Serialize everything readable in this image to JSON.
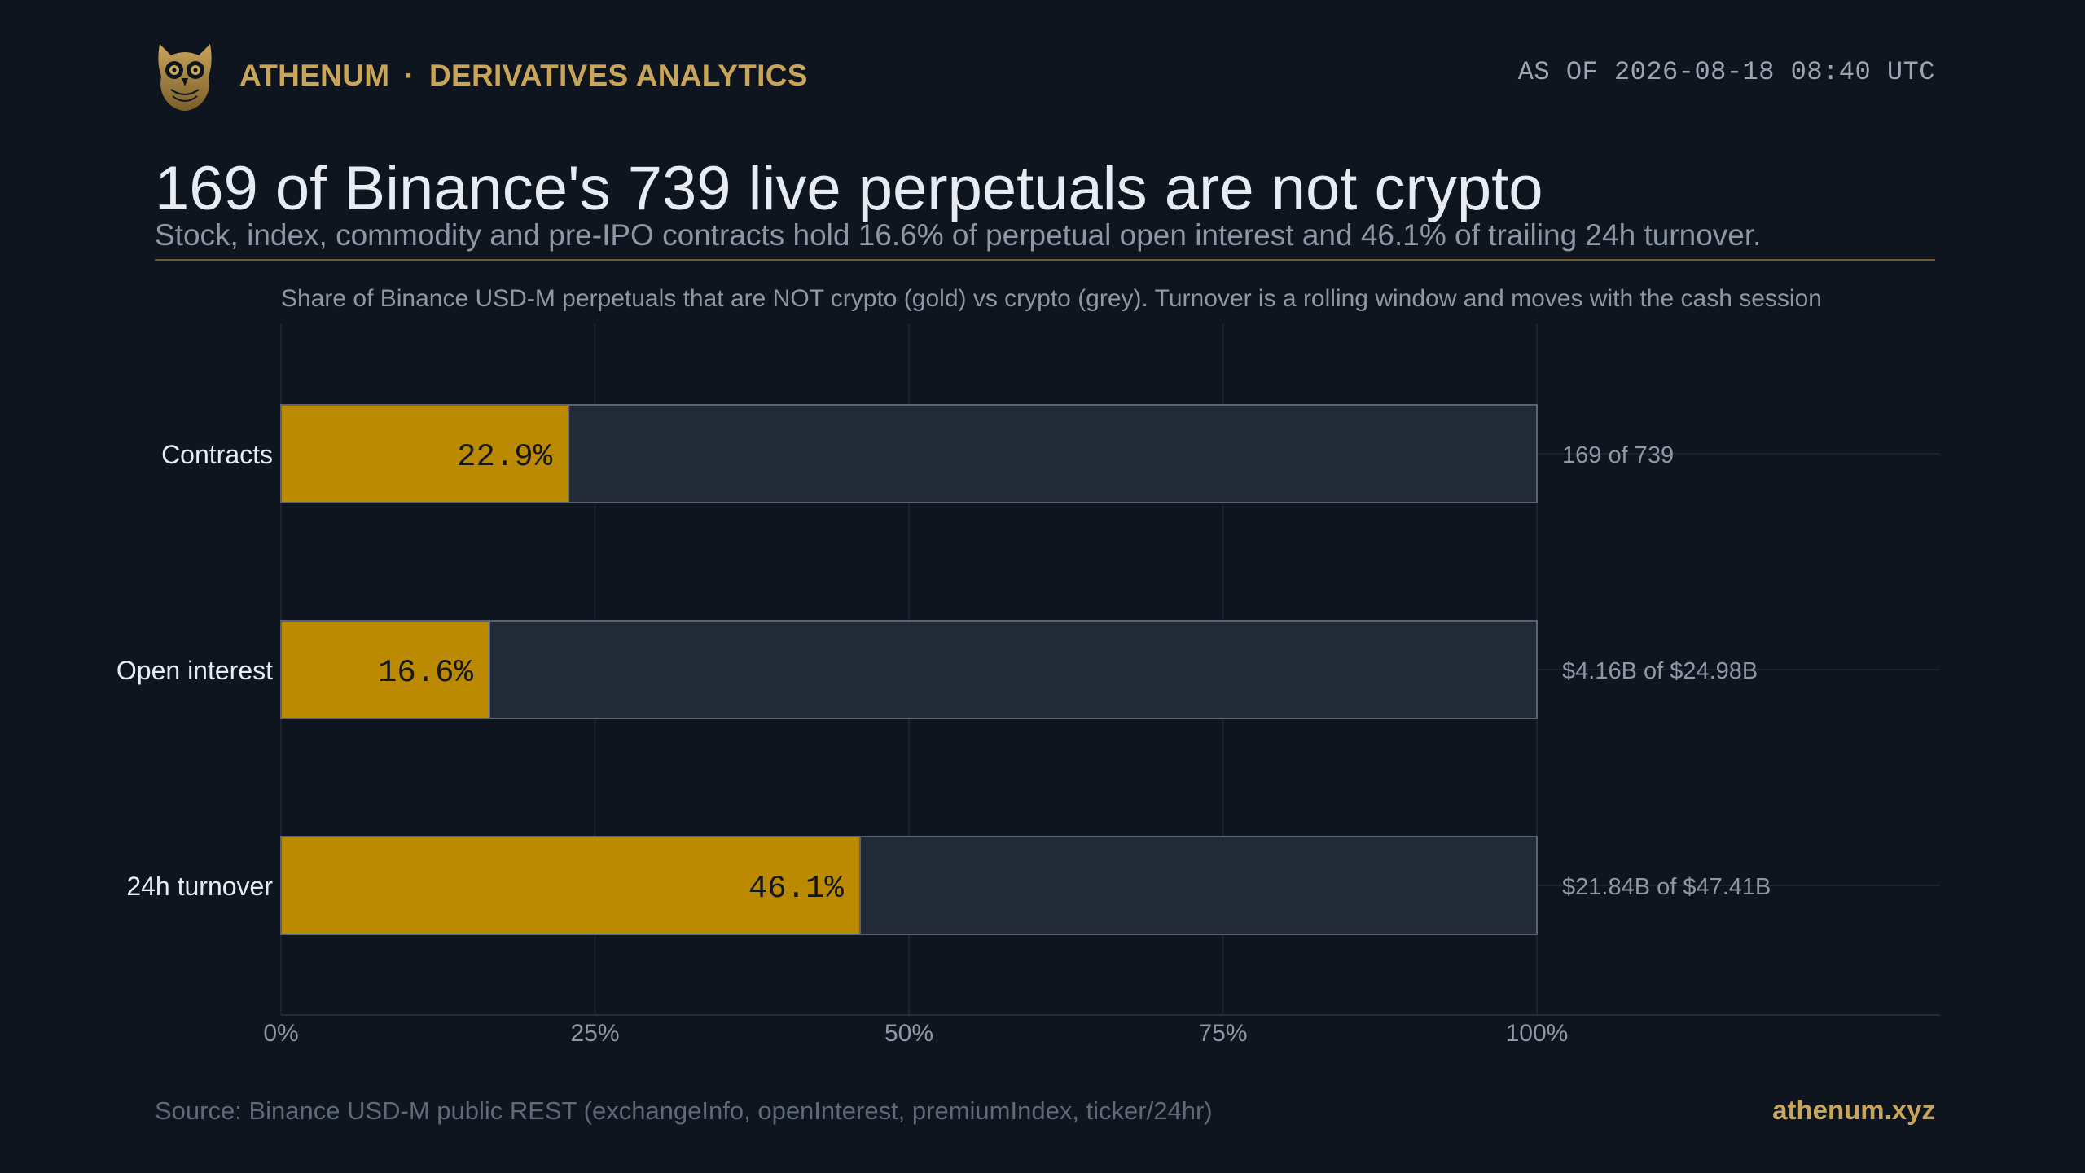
{
  "header": {
    "brand_name": "ATHENUM",
    "separator": "·",
    "brand_section": "DERIVATIVES ANALYTICS",
    "logo_icon": "owl-icon",
    "as_of": "AS OF 2026-08-18 08:40 UTC"
  },
  "headline": {
    "title": "169 of Binance's 739 live perpetuals are not crypto",
    "subtitle": "Stock, index, commodity and pre-IPO contracts hold 16.6% of perpetual open interest and 46.1% of trailing 24h turnover."
  },
  "chart_data": {
    "type": "bar",
    "orientation": "horizontal",
    "stacked": true,
    "caption": "Share of Binance USD-M perpetuals that are NOT crypto (gold) vs crypto (grey). Turnover is a rolling window and moves with the cash session",
    "categories": [
      "Contracts",
      "Open interest",
      "24h turnover"
    ],
    "series": [
      {
        "color": "#bb8a00",
        "values": [
          22.9,
          16.6,
          46.1
        ]
      },
      {
        "color": "#222a37",
        "values": [
          77.1,
          83.4,
          53.9
        ]
      }
    ],
    "value_labels": [
      "22.9%",
      "16.6%",
      "46.1%"
    ],
    "right_labels": [
      "169 of 739",
      "$4.16B of $24.98B",
      "$21.84B of $47.41B"
    ],
    "x_ticks": [
      "0%",
      "25%",
      "50%",
      "75%",
      "100%"
    ],
    "x_tick_values": [
      0,
      25,
      50,
      75,
      100
    ],
    "xlim": [
      0,
      100
    ],
    "grid": true
  },
  "footer": {
    "source": "Source: Binance USD-M public REST (exchangeInfo, openInterest, premiumIndex, ticker/24hr)",
    "site": "athenum.xyz"
  }
}
